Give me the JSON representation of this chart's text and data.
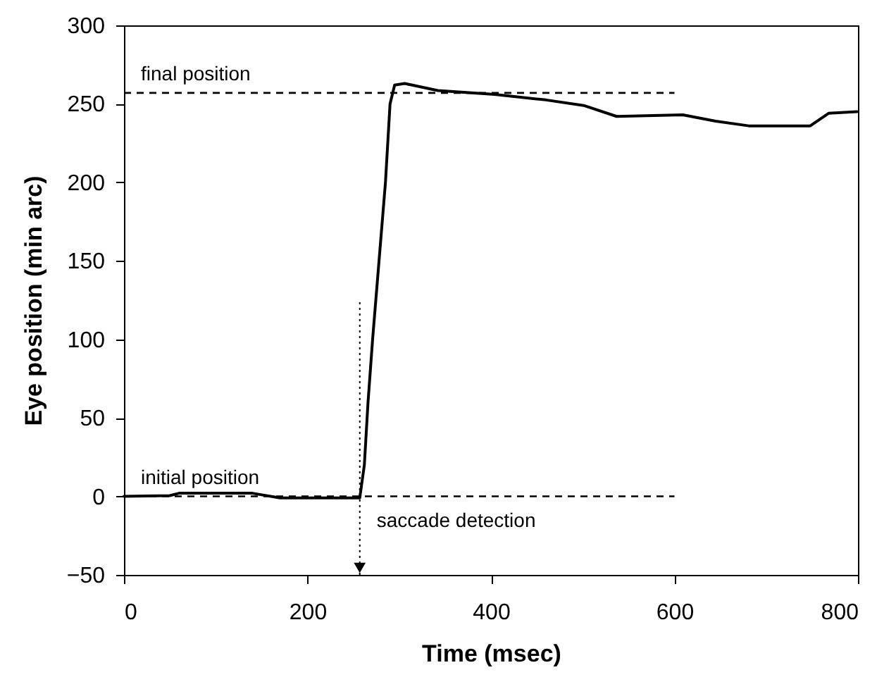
{
  "chart_data": {
    "type": "line",
    "xlabel": "Time (msec)",
    "ylabel": "Eye position (min arc)",
    "xlim": [
      0,
      800
    ],
    "xticks": [
      0,
      200,
      400,
      600,
      800
    ],
    "ylim": [
      -50,
      300
    ],
    "yticks": [
      -50,
      0,
      50,
      100,
      150,
      200,
      250,
      300
    ],
    "marker": "none",
    "series": [
      {
        "color": "#000000",
        "line_style": "solid",
        "x": [
          0,
          50,
          60,
          100,
          140,
          170,
          257,
          262,
          266,
          271,
          278,
          285,
          290,
          295,
          306,
          342,
          404,
          460,
          501,
          537,
          609,
          645,
          681,
          748,
          768,
          799
        ],
        "values": [
          0,
          0.5,
          2,
          2,
          2,
          -1,
          -1,
          20,
          60,
          100,
          150,
          200,
          250,
          262,
          263,
          258.5,
          256,
          252.5,
          249,
          242,
          243,
          239,
          236,
          236,
          244,
          245
        ]
      }
    ],
    "ref_lines": [
      {
        "axis": "y",
        "value": 257,
        "label": "final position",
        "color": "#000000",
        "line_style": "dashed"
      },
      {
        "axis": "y",
        "value": 0,
        "label": "initial position",
        "color": "#000000",
        "line_style": "dashed"
      },
      {
        "axis": "x",
        "value": 257,
        "label": "saccade detection",
        "color": "#000000",
        "line_style": "dotted"
      }
    ]
  }
}
